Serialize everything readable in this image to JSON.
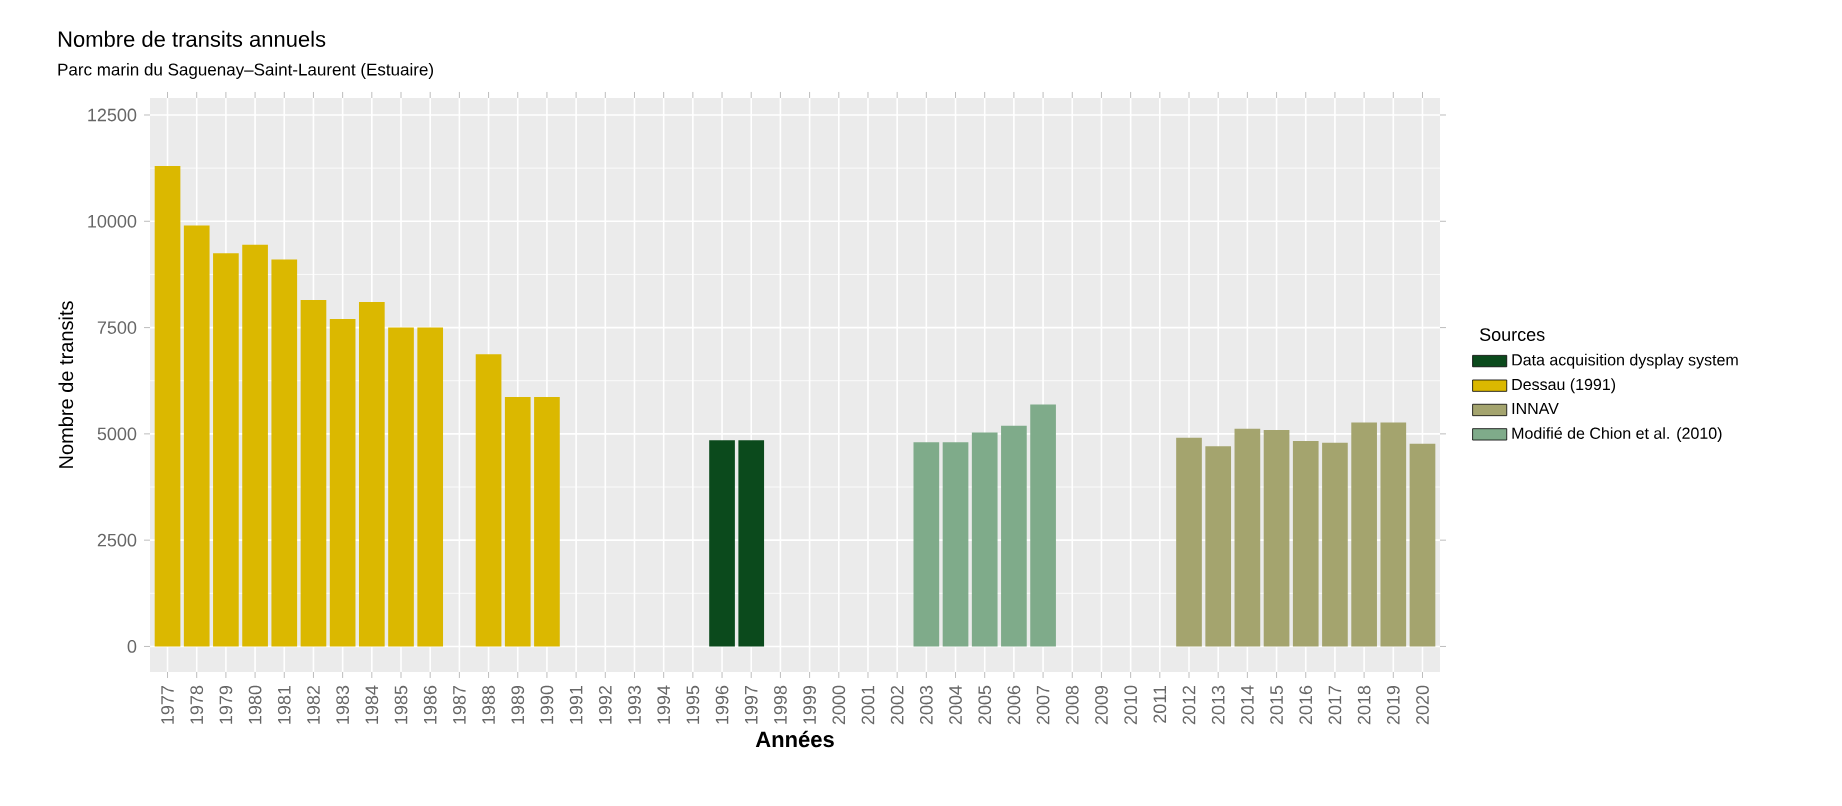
{
  "chart_data": {
    "type": "bar",
    "title": "Nombre de transits annuels",
    "subtitle": "Parc marin du Saguenay–Saint-Laurent (Estuaire)",
    "xlabel": "Années",
    "ylabel": "Nombre de transits",
    "legend_title": "Sources",
    "categories": [
      "1977",
      "1978",
      "1979",
      "1980",
      "1981",
      "1982",
      "1983",
      "1984",
      "1985",
      "1986",
      "1987",
      "1988",
      "1989",
      "1990",
      "1991",
      "1992",
      "1993",
      "1994",
      "1995",
      "1996",
      "1997",
      "1998",
      "1999",
      "2000",
      "2001",
      "2002",
      "2003",
      "2004",
      "2005",
      "2006",
      "2007",
      "2008",
      "2009",
      "2010",
      "2011",
      "2012",
      "2013",
      "2014",
      "2015",
      "2016",
      "2017",
      "2018",
      "2019",
      "2020"
    ],
    "series": [
      {
        "name": "Data acquisition dysplay system",
        "color": "#0b4a1c",
        "values": [
          null,
          null,
          null,
          null,
          null,
          null,
          null,
          null,
          null,
          null,
          null,
          null,
          null,
          null,
          null,
          null,
          null,
          null,
          null,
          4850,
          4850,
          null,
          null,
          null,
          null,
          null,
          null,
          null,
          null,
          null,
          null,
          null,
          null,
          null,
          null,
          null,
          null,
          null,
          null,
          null,
          null,
          null,
          null,
          null
        ]
      },
      {
        "name": "Dessau (1991)",
        "color": "#dbb800",
        "values": [
          11300,
          9900,
          9250,
          9450,
          9100,
          8150,
          7700,
          8100,
          7500,
          7500,
          null,
          6870,
          5870,
          5870,
          null,
          null,
          null,
          null,
          null,
          null,
          null,
          null,
          null,
          null,
          null,
          null,
          null,
          null,
          null,
          null,
          null,
          null,
          null,
          null,
          null,
          null,
          null,
          null,
          null,
          null,
          null,
          null,
          null,
          null
        ]
      },
      {
        "name": "INNAV",
        "color": "#a4a46e",
        "values": [
          null,
          null,
          null,
          null,
          null,
          null,
          null,
          null,
          null,
          null,
          null,
          null,
          null,
          null,
          null,
          null,
          null,
          null,
          null,
          null,
          null,
          null,
          null,
          null,
          null,
          null,
          null,
          null,
          null,
          null,
          null,
          null,
          null,
          null,
          null,
          4910,
          4710,
          5120,
          5090,
          4830,
          4790,
          5270,
          5270,
          4770
        ]
      },
      {
        "name": "Modifié de Chion et al. (2010)",
        "color": "#7fab8a",
        "values": [
          null,
          null,
          null,
          null,
          null,
          null,
          null,
          null,
          null,
          null,
          null,
          null,
          null,
          null,
          null,
          null,
          null,
          null,
          null,
          null,
          null,
          null,
          null,
          null,
          null,
          null,
          4800,
          4800,
          5030,
          5190,
          5690,
          null,
          null,
          null,
          null,
          null,
          null,
          null,
          null,
          null,
          null,
          null,
          null,
          null
        ]
      }
    ],
    "ylim": [
      -600,
      12900
    ],
    "yticks": [
      0,
      2500,
      5000,
      7500,
      10000,
      12500
    ],
    "grid": true,
    "legend": "right"
  }
}
